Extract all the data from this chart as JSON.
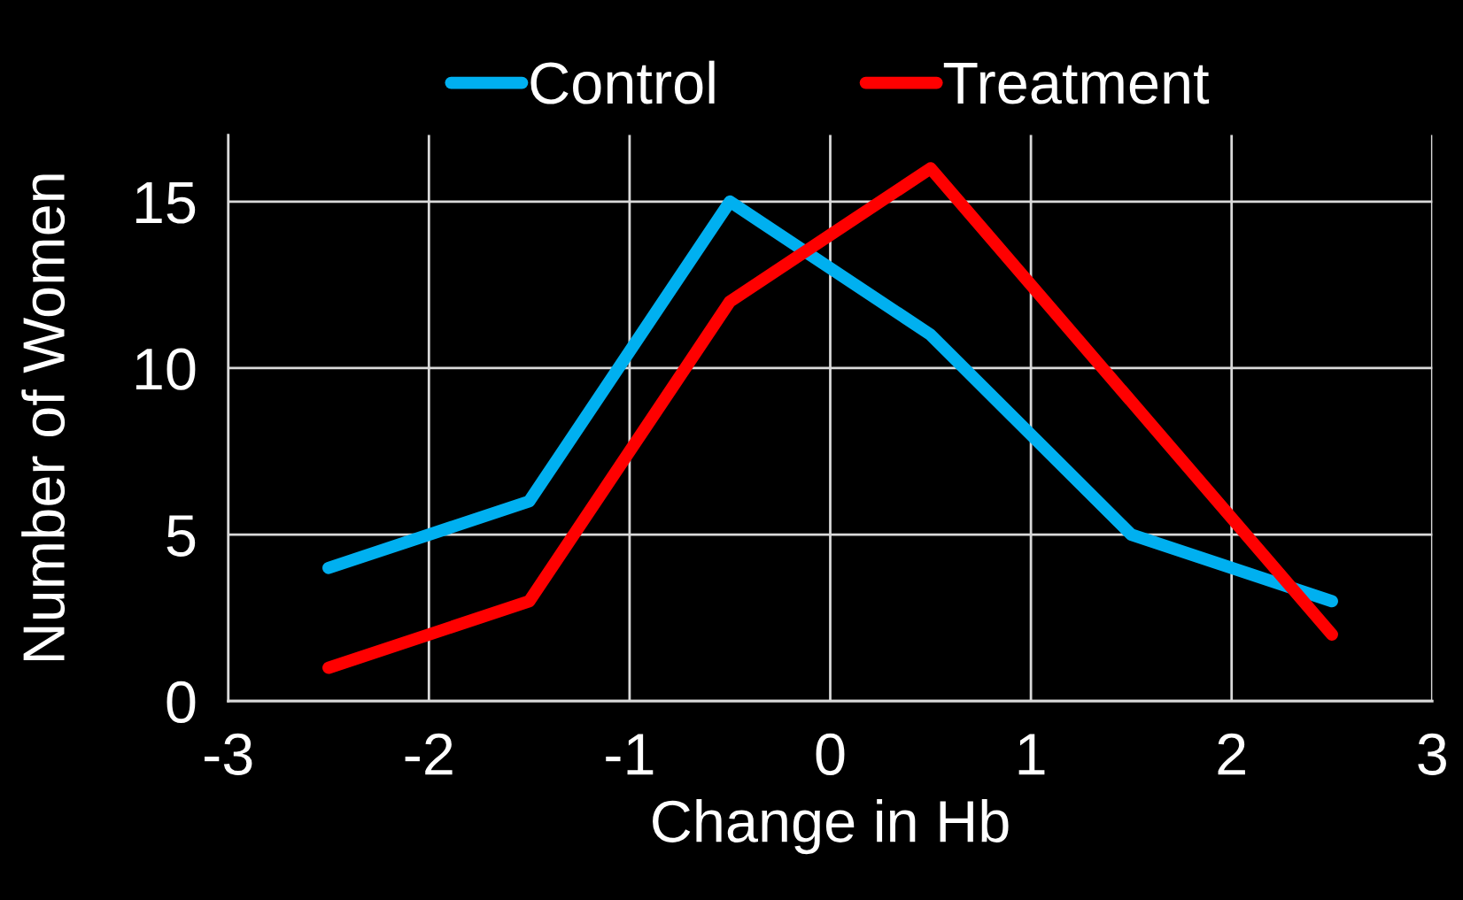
{
  "chart_data": {
    "type": "line",
    "xlabel": "Change in Hb",
    "ylabel": "Number of Women",
    "x": [
      -2.5,
      -1.5,
      -0.5,
      0.5,
      1.5,
      2.5
    ],
    "series": [
      {
        "name": "Control",
        "color": "#00b0f0",
        "values": [
          4,
          6,
          15,
          11,
          5,
          3
        ]
      },
      {
        "name": "Treatment",
        "color": "#ff0000",
        "values": [
          1,
          3,
          12,
          16,
          9,
          2
        ]
      }
    ],
    "xlim": [
      -3,
      3
    ],
    "xticks": [
      -3,
      -2,
      -1,
      0,
      1,
      2,
      3
    ],
    "ylim": [
      0,
      17
    ],
    "yticks": [
      0,
      5,
      10,
      15
    ],
    "grid": true,
    "legend": "top",
    "line_style": "solid"
  }
}
